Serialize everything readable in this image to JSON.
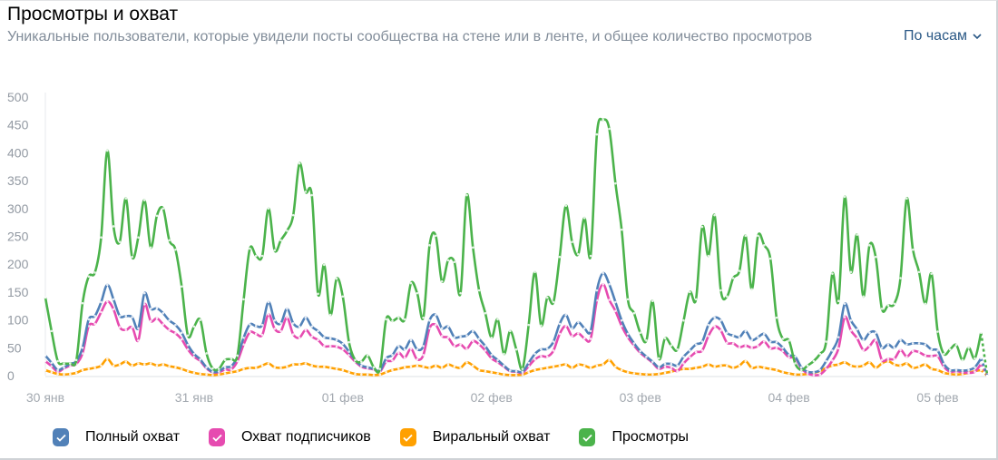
{
  "header": {
    "title": "Просмотры и охват",
    "subtitle": "Уникальные пользователи, которые увидели посты сообщества на стене или в ленте, и общее количество просмотров",
    "period_select": {
      "value": "По часам",
      "icon": "chevron-down-icon"
    }
  },
  "chart_data": {
    "type": "line",
    "interval": "hour",
    "ylim": [
      0,
      500
    ],
    "yticks": [
      "0",
      "50",
      "100",
      "150",
      "200",
      "250",
      "300",
      "350",
      "400",
      "450",
      "500"
    ],
    "xticks": [
      {
        "label": "30 янв",
        "index": 0
      },
      {
        "label": "31 янв",
        "index": 24
      },
      {
        "label": "01 фев",
        "index": 48
      },
      {
        "label": "02 фев",
        "index": 72
      },
      {
        "label": "03 фев",
        "index": 96
      },
      {
        "label": "04 фев",
        "index": 120
      },
      {
        "label": "05 фев",
        "index": 144
      }
    ],
    "grid": false,
    "legend_placement": "bottom-left",
    "series": [
      {
        "name": "Полный охват",
        "color": "#5181b8",
        "checked": true,
        "values": [
          36,
          23,
          10,
          15,
          21,
          26,
          50,
          101,
          107,
          132,
          163,
          137,
          107,
          107,
          105,
          85,
          148,
          120,
          121,
          112,
          99,
          91,
          77,
          55,
          39,
          29,
          15,
          7,
          8,
          15,
          17,
          34,
          68,
          92,
          89,
          91,
          132,
          99,
          94,
          120,
          94,
          88,
          104,
          88,
          80,
          69,
          67,
          64,
          57,
          43,
          28,
          18,
          15,
          12,
          9,
          31,
          37,
          53,
          47,
          64,
          47,
          53,
          99,
          109,
          85,
          88,
          69,
          70,
          72,
          80,
          66,
          53,
          37,
          28,
          18,
          9,
          8,
          7,
          23,
          39,
          47,
          48,
          61,
          93,
          109,
          85,
          96,
          85,
          80,
          153,
          184,
          164,
          132,
          99,
          75,
          58,
          44,
          34,
          25,
          15,
          21,
          21,
          18,
          34,
          45,
          56,
          61,
          91,
          104,
          99,
          77,
          72,
          69,
          80,
          64,
          69,
          75,
          61,
          60,
          50,
          37,
          34,
          15,
          7,
          6,
          10,
          26,
          45,
          69,
          129,
          99,
          83,
          64,
          77,
          77,
          50,
          56,
          50,
          64,
          56,
          58,
          58,
          56,
          47,
          45,
          21,
          10,
          10,
          9,
          10,
          15,
          31,
          0
        ]
      },
      {
        "name": "Охват подписчиков",
        "color": "#e64bb0",
        "checked": true,
        "values": [
          26,
          17,
          7,
          13,
          18,
          21,
          40,
          89,
          93,
          114,
          133,
          119,
          87,
          82,
          87,
          63,
          128,
          98,
          103,
          92,
          82,
          76,
          65,
          47,
          34,
          26,
          13,
          6,
          6,
          11,
          11,
          26,
          56,
          78,
          75,
          73,
          110,
          84,
          80,
          104,
          74,
          68,
          82,
          70,
          64,
          53,
          53,
          52,
          47,
          37,
          25,
          16,
          13,
          11,
          7,
          25,
          27,
          41,
          32,
          48,
          29,
          37,
          85,
          91,
          71,
          68,
          53,
          56,
          48,
          62,
          56,
          45,
          31,
          24,
          16,
          8,
          7,
          5,
          17,
          29,
          35,
          34,
          45,
          75,
          89,
          71,
          76,
          67,
          66,
          135,
          164,
          136,
          116,
          89,
          69,
          54,
          41,
          32,
          23,
          12,
          16,
          14,
          8,
          22,
          33,
          42,
          45,
          71,
          88,
          81,
          59,
          58,
          51,
          54,
          50,
          53,
          61,
          49,
          50,
          44,
          33,
          32,
          13,
          4,
          1,
          2,
          12,
          27,
          49,
          105,
          81,
          67,
          46,
          53,
          63,
          28,
          30,
          30,
          46,
          34,
          44,
          42,
          36,
          35,
          35,
          16,
          7,
          8,
          6,
          5,
          7,
          21,
          0
        ]
      },
      {
        "name": "Виральный охват",
        "color": "#ffa000",
        "checked": true,
        "values": [
          10,
          6,
          3,
          2,
          3,
          5,
          10,
          12,
          14,
          18,
          30,
          18,
          20,
          25,
          18,
          22,
          20,
          22,
          18,
          20,
          17,
          15,
          12,
          8,
          5,
          3,
          2,
          1,
          2,
          4,
          6,
          8,
          12,
          14,
          14,
          18,
          22,
          15,
          14,
          16,
          20,
          20,
          22,
          18,
          16,
          16,
          14,
          12,
          10,
          6,
          3,
          2,
          2,
          1,
          2,
          6,
          10,
          12,
          15,
          16,
          18,
          16,
          14,
          18,
          14,
          20,
          16,
          14,
          24,
          18,
          10,
          8,
          6,
          4,
          2,
          1,
          1,
          2,
          6,
          10,
          12,
          14,
          16,
          18,
          20,
          14,
          20,
          18,
          14,
          18,
          20,
          28,
          16,
          10,
          6,
          4,
          3,
          2,
          2,
          3,
          5,
          7,
          10,
          12,
          12,
          14,
          16,
          20,
          16,
          18,
          18,
          14,
          18,
          26,
          14,
          16,
          14,
          12,
          10,
          6,
          4,
          2,
          2,
          3,
          5,
          8,
          14,
          18,
          20,
          24,
          18,
          16,
          18,
          24,
          14,
          22,
          26,
          20,
          18,
          22,
          14,
          16,
          20,
          12,
          10,
          5,
          3,
          2,
          3,
          5,
          8,
          10,
          0
        ]
      },
      {
        "name": "Просмотры",
        "color": "#4bb34b",
        "checked": true,
        "values": [
          140,
          80,
          26,
          22,
          22,
          28,
          130,
          178,
          185,
          248,
          404,
          268,
          240,
          318,
          213,
          248,
          315,
          230,
          287,
          300,
          243,
          226,
          160,
          72,
          88,
          100,
          40,
          13,
          12,
          28,
          30,
          36,
          137,
          228,
          215,
          215,
          300,
          225,
          243,
          260,
          288,
          381,
          330,
          324,
          147,
          199,
          109,
          174,
          142,
          60,
          28,
          25,
          36,
          15,
          12,
          101,
          98,
          104,
          101,
          166,
          148,
          104,
          234,
          251,
          169,
          207,
          204,
          148,
          324,
          230,
          153,
          112,
          68,
          101,
          39,
          80,
          47,
          12,
          91,
          186,
          90,
          140,
          132,
          213,
          305,
          240,
          218,
          283,
          215,
          433,
          459,
          443,
          345,
          262,
          137,
          112,
          77,
          63,
          134,
          31,
          67,
          54,
          47,
          99,
          150,
          137,
          267,
          215,
          288,
          153,
          142,
          175,
          188,
          251,
          155,
          251,
          234,
          210,
          104,
          66,
          63,
          22,
          10,
          18,
          26,
          39,
          61,
          183,
          134,
          321,
          186,
          253,
          142,
          234,
          213,
          120,
          126,
          129,
          175,
          318,
          226,
          186,
          129,
          183,
          79,
          39,
          47,
          55,
          28,
          50,
          31,
          77,
          0
        ]
      }
    ]
  }
}
